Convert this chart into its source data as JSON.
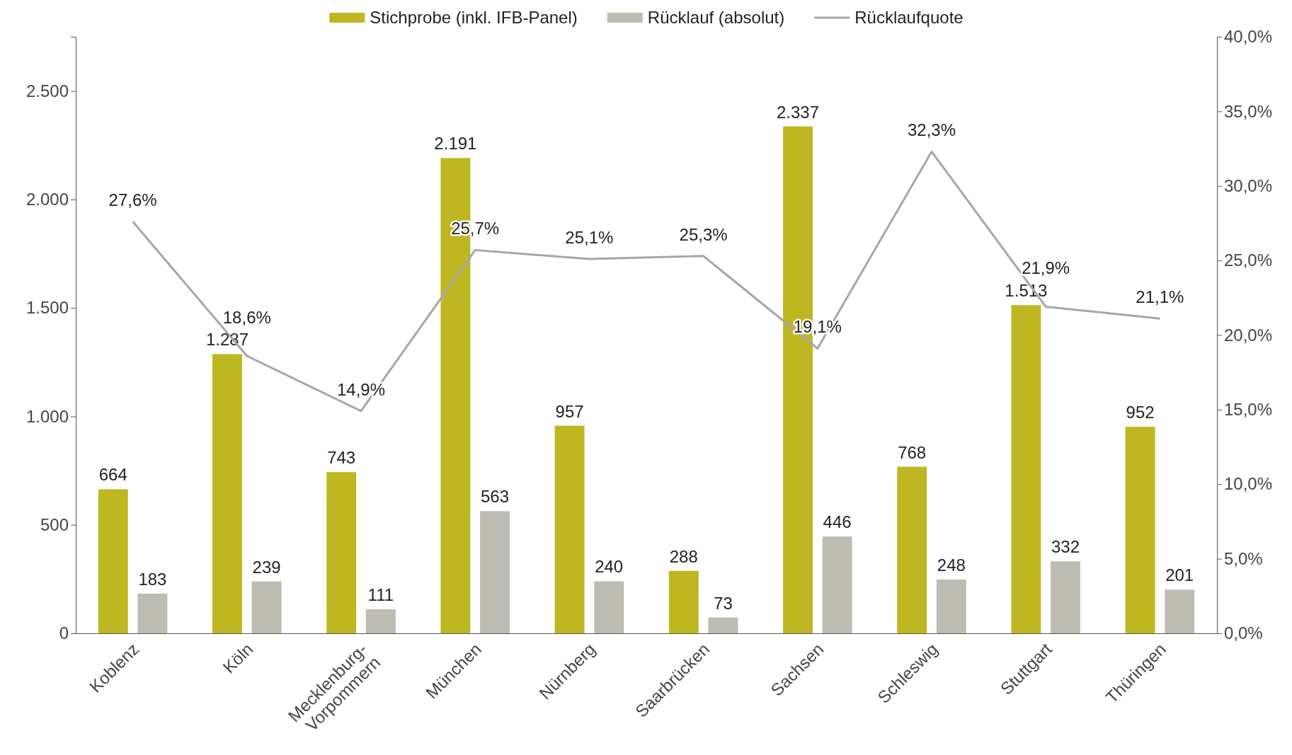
{
  "chart_data": {
    "type": "bar",
    "categories": [
      "Koblenz",
      "Köln",
      "Mecklenburg-Vorpommern",
      "München",
      "Nürnberg",
      "Saarbrücken",
      "Sachsen",
      "Schleswig",
      "Stuttgart",
      "Thüringen"
    ],
    "series": [
      {
        "name": "Stichprobe (inkl. IFB-Panel)",
        "color": "#bfb722",
        "values": [
          664,
          1287,
          743,
          2191,
          957,
          288,
          2337,
          768,
          1513,
          952
        ],
        "value_labels": [
          "664",
          "1.287",
          "743",
          "2.191",
          "957",
          "288",
          "2.337",
          "768",
          "1.513",
          "952"
        ]
      },
      {
        "name": "Rücklauf (absolut)",
        "color": "#bcbcb3",
        "values": [
          183,
          239,
          111,
          563,
          240,
          73,
          446,
          248,
          332,
          201
        ],
        "value_labels": [
          "183",
          "239",
          "111",
          "563",
          "240",
          "73",
          "446",
          "248",
          "332",
          "201"
        ]
      },
      {
        "name": "Rücklaufquote",
        "type": "line",
        "axis": "y2",
        "color": "#a6a6a6",
        "values": [
          27.6,
          18.6,
          14.9,
          25.7,
          25.1,
          25.3,
          19.1,
          32.3,
          21.9,
          21.1
        ],
        "value_labels": [
          "27,6%",
          "18,6%",
          "14,9%",
          "25,7%",
          "25,1%",
          "25,3%",
          "19,1%",
          "32,3%",
          "21,9%",
          "21,1%"
        ]
      }
    ],
    "ylim": [
      0,
      2750
    ],
    "yticks": [
      0,
      {
        "value": 500,
        "label": "500"
      },
      {
        "value": 1000,
        "label": "1.000"
      },
      {
        "value": 1500,
        "label": "1.500"
      },
      {
        "value": 2000,
        "label": "2.000"
      },
      {
        "value": 2500,
        "label": "2.500"
      }
    ],
    "y2lim": [
      0,
      40
    ],
    "y2ticks": [
      {
        "value": 0,
        "label": "0,0%"
      },
      {
        "value": 5,
        "label": "5,0%"
      },
      {
        "value": 10,
        "label": "10,0%"
      },
      {
        "value": 15,
        "label": "15,0%"
      },
      {
        "value": 20,
        "label": "20,0%"
      },
      {
        "value": 25,
        "label": "25,0%"
      },
      {
        "value": 30,
        "label": "30,0%"
      },
      {
        "value": 35,
        "label": "35,0%"
      },
      {
        "value": 40,
        "label": "40,0%"
      }
    ],
    "legend": "top"
  }
}
